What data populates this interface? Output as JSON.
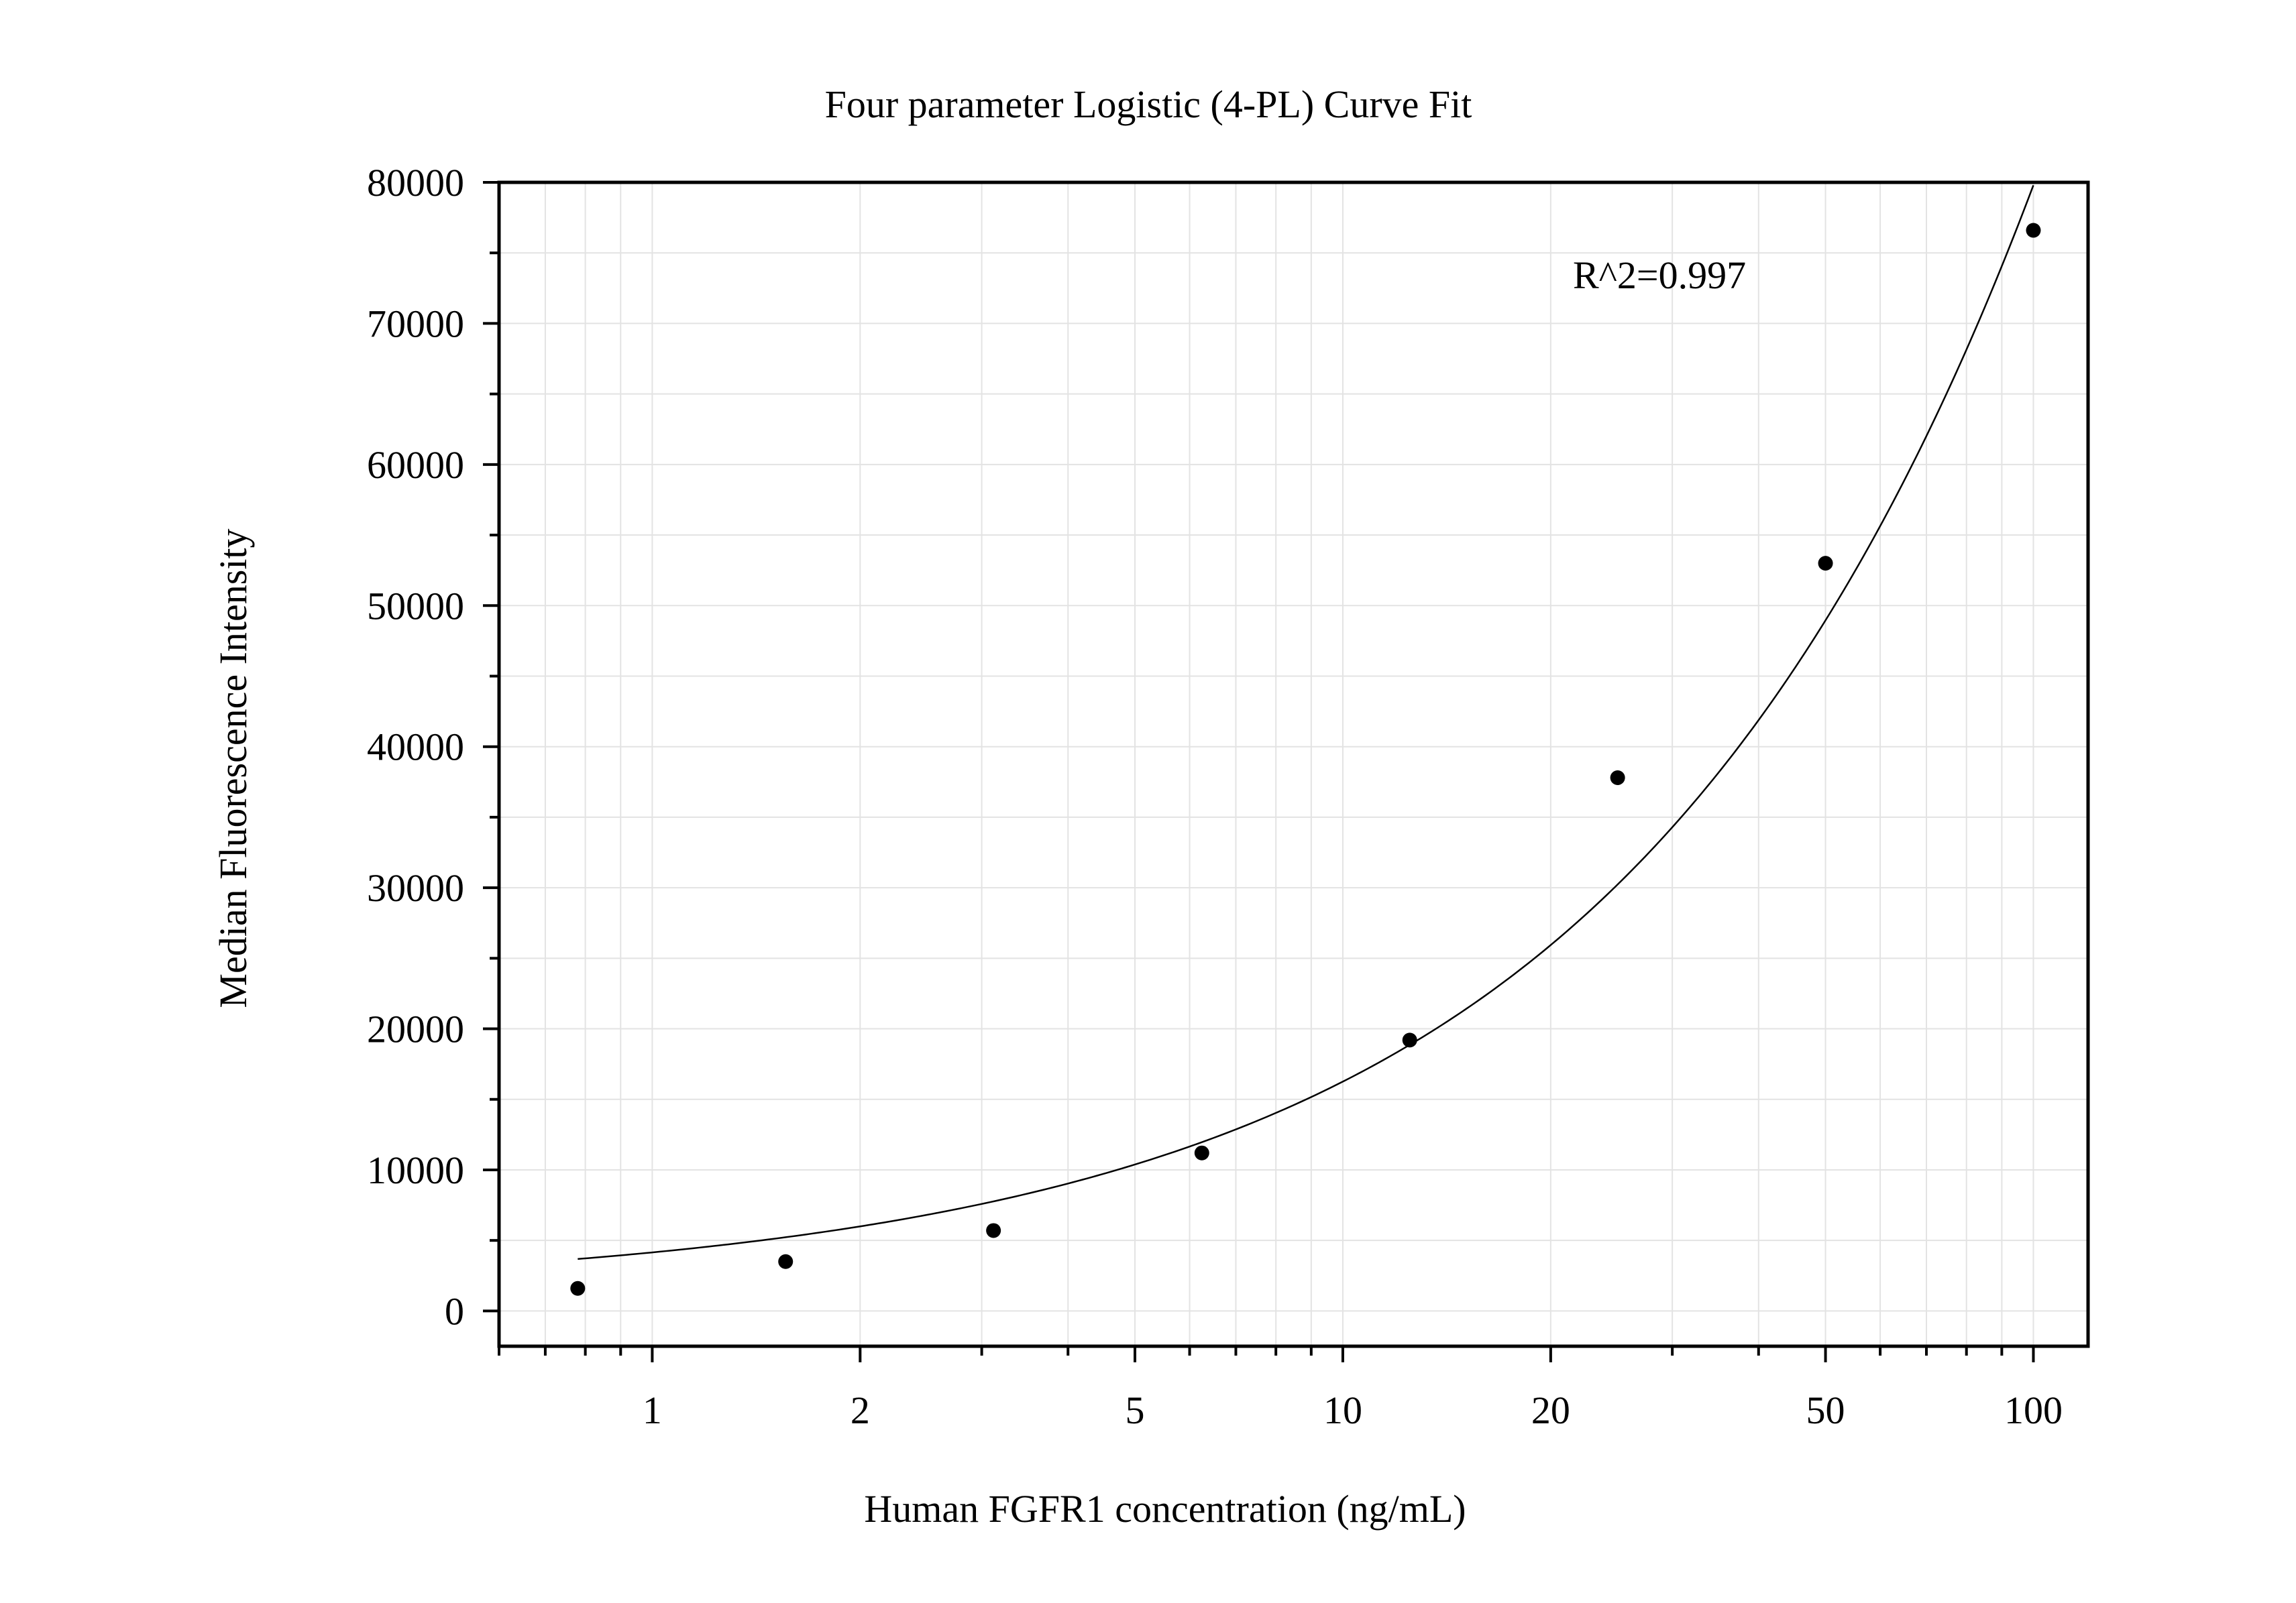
{
  "chart_data": {
    "type": "scatter",
    "title": "Four parameter Logistic (4-PL) Curve Fit",
    "xlabel": "Human FGFR1 concentration (ng/mL)",
    "ylabel": "Median Fluorescence Intensity",
    "x_scale": "log",
    "xlim": [
      0.6,
      120
    ],
    "ylim": [
      -2500,
      80000
    ],
    "grid": true,
    "legend": "none",
    "x_ticks": [
      1,
      2,
      5,
      10,
      20,
      50,
      100
    ],
    "x_tick_labels": [
      "1",
      "2",
      "5",
      "10",
      "20",
      "50",
      "100"
    ],
    "y_ticks": [
      0,
      10000,
      20000,
      30000,
      40000,
      50000,
      60000,
      70000,
      80000
    ],
    "y_tick_labels": [
      "0",
      "10000",
      "20000",
      "30000",
      "40000",
      "50000",
      "60000",
      "70000",
      "80000"
    ],
    "series": [
      {
        "kind": "points",
        "x": [
          0.78,
          1.56,
          3.12,
          6.25,
          12.5,
          25,
          50,
          100
        ],
        "y": [
          1600,
          3500,
          5700,
          11200,
          19200,
          37800,
          53000,
          76600
        ],
        "color": "#000000"
      },
      {
        "kind": "fit-line",
        "model": "4-PL",
        "x_range": [
          0.78,
          100
        ],
        "color": "#000000"
      }
    ],
    "annotations": [
      {
        "text": "R^2=0.997"
      }
    ]
  }
}
